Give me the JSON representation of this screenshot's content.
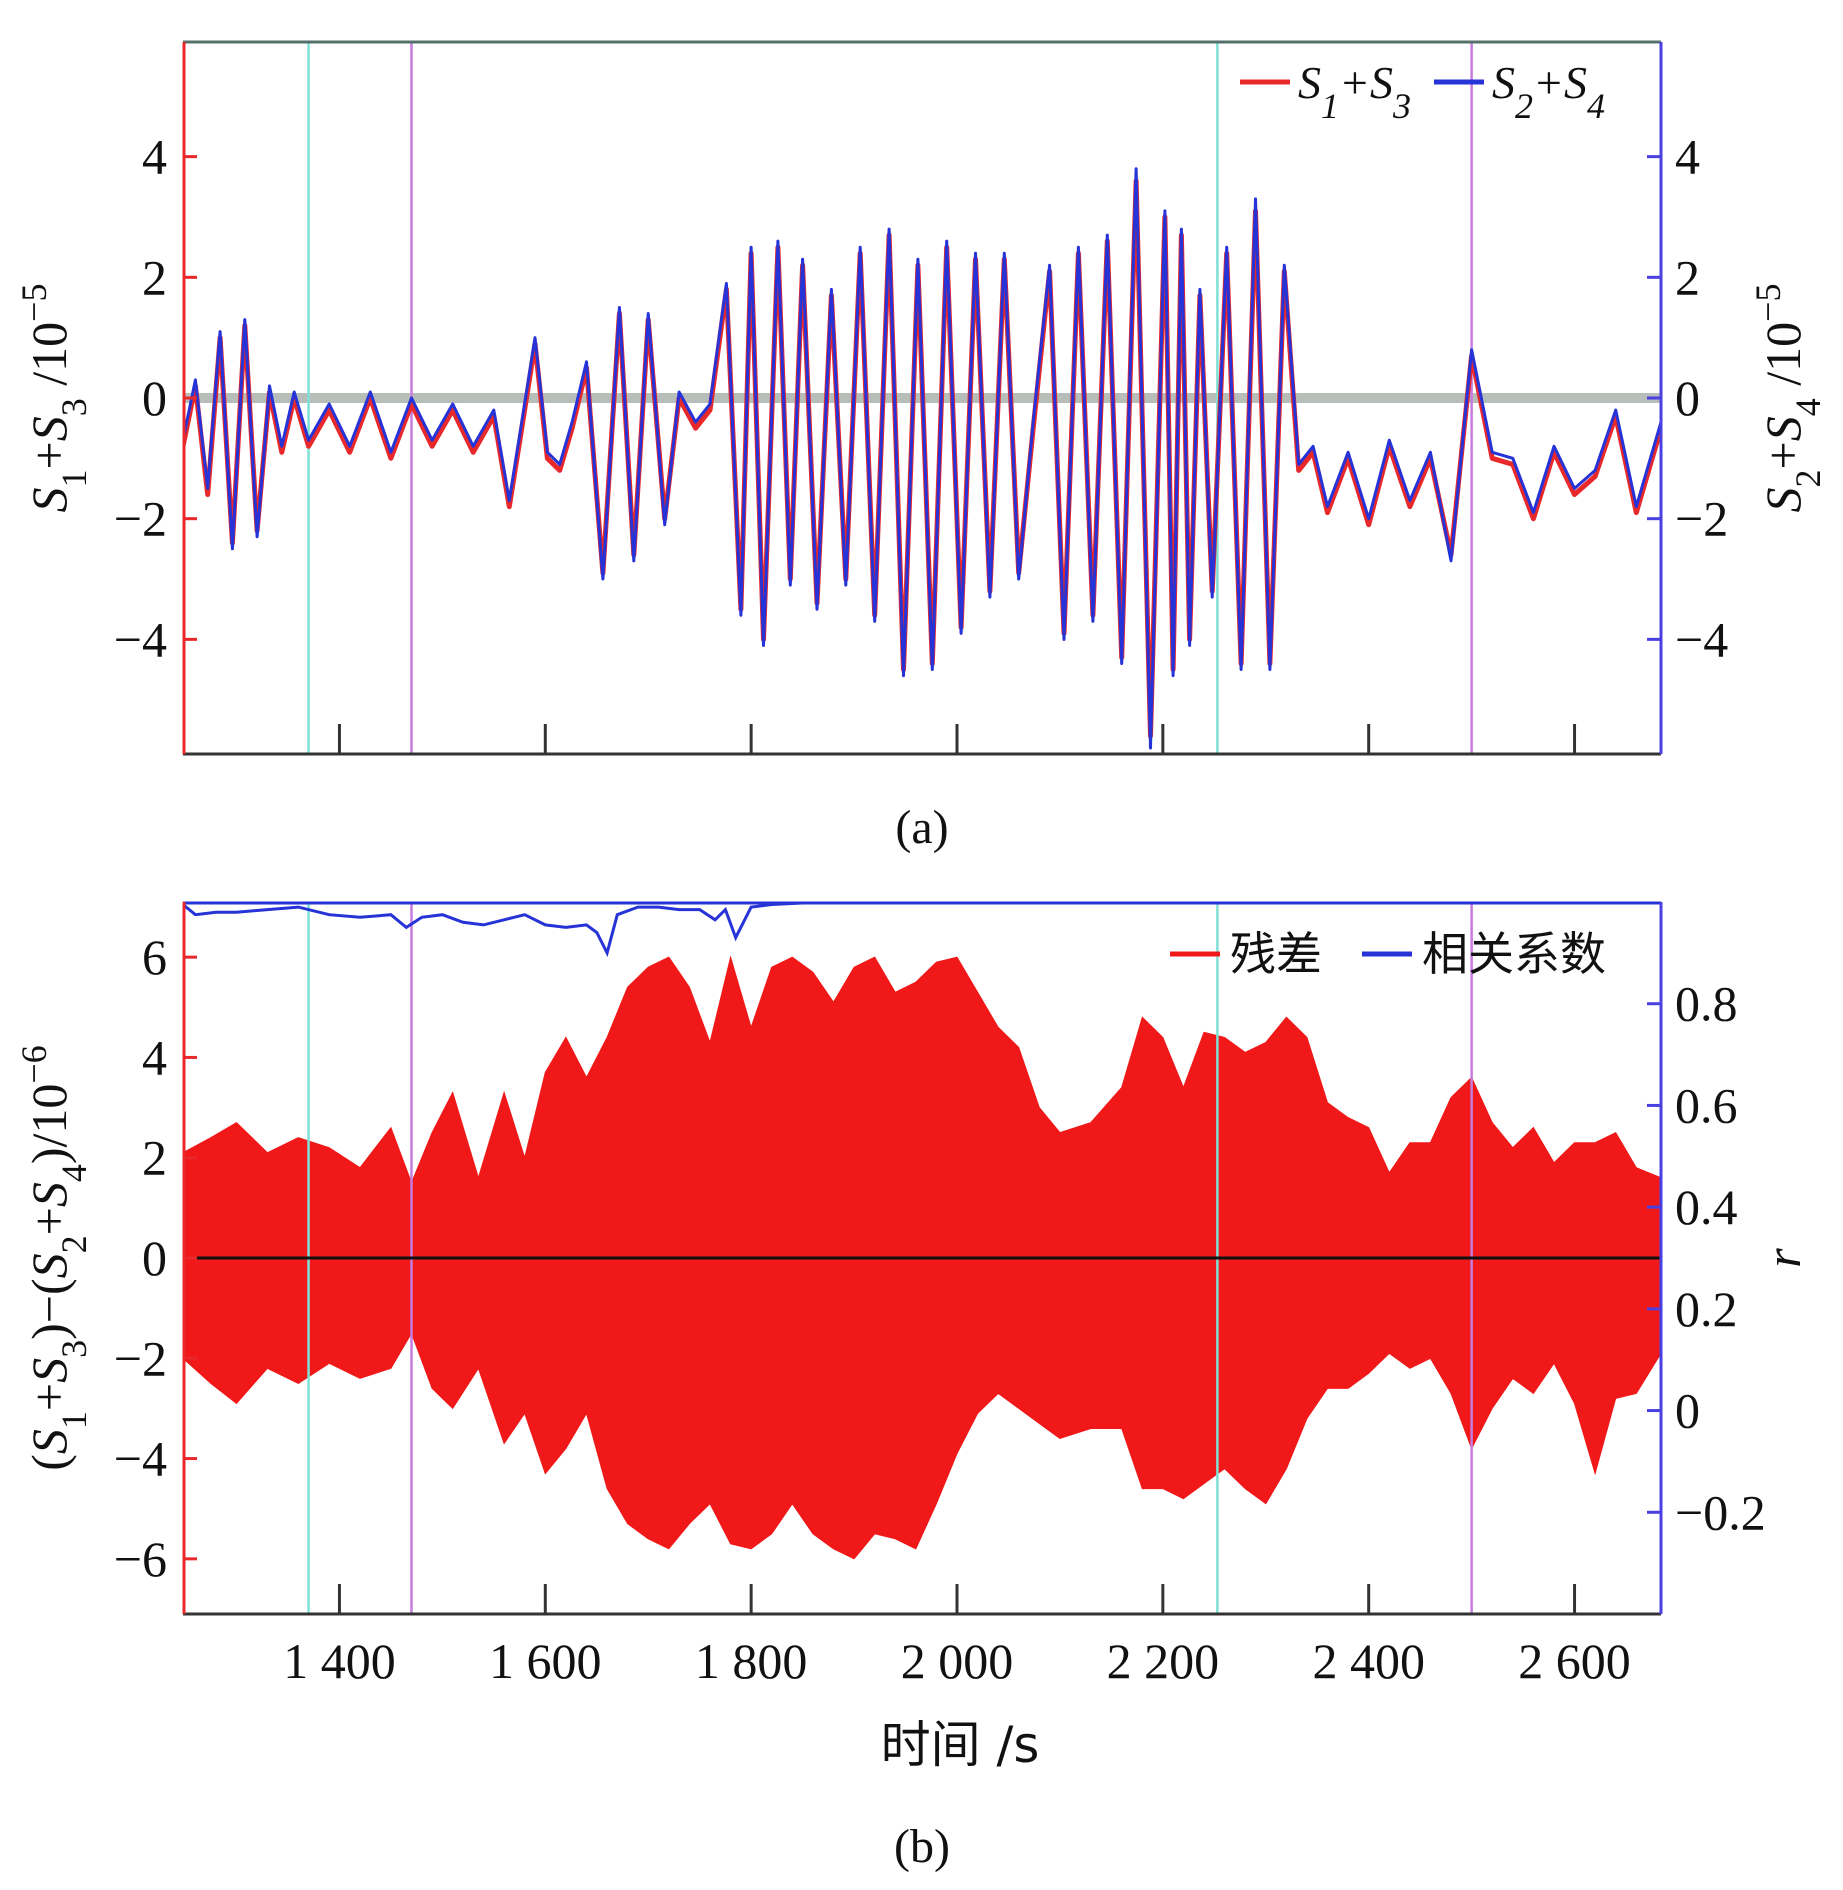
{
  "figure": {
    "x_axis_label": "时间 /s",
    "x_ticks": [
      1400,
      1600,
      1800,
      2000,
      2200,
      2400,
      2600
    ],
    "x_tick_labels": [
      "1 400",
      "1 600",
      "1 800",
      "2 000",
      "2 200",
      "2 400",
      "2 600"
    ],
    "xlim": [
      1248,
      2684
    ],
    "marker_lines": [
      {
        "x": 1370,
        "color": "#7fe0d6"
      },
      {
        "x": 1470,
        "color": "#c77be0"
      },
      {
        "x": 2253,
        "color": "#7fe0d6"
      },
      {
        "x": 2500,
        "color": "#c77be0"
      }
    ]
  },
  "chart_data": [
    {
      "type": "line",
      "panel_label": "(a)",
      "title": "",
      "ylabel_left": "S1+S3 /10−5",
      "ylabel_right": "S2+S4 /10−5",
      "ylim_left": [
        -5.9,
        5.9
      ],
      "ylim_right": [
        -5.9,
        5.9
      ],
      "y_ticks_left": [
        -4,
        -2,
        0,
        2,
        4
      ],
      "y_tick_labels_left": [
        "−4",
        "−2",
        "0",
        "2",
        "4"
      ],
      "y_ticks_right": [
        -4,
        -2,
        0,
        2,
        4
      ],
      "y_tick_labels_right": [
        "−4",
        "−2",
        "0",
        "2",
        "4"
      ],
      "legend": [
        "S1+S3",
        "S2+S4"
      ],
      "legend_position": "top-right",
      "series": [
        {
          "name": "S1+S3",
          "color": "#e8282a",
          "x": [
            1248,
            1260,
            1272,
            1284,
            1296,
            1308,
            1320,
            1332,
            1344,
            1356,
            1370,
            1390,
            1410,
            1430,
            1450,
            1470,
            1490,
            1510,
            1530,
            1550,
            1565,
            1578,
            1590,
            1602,
            1614,
            1626,
            1640,
            1656,
            1672,
            1686,
            1700,
            1716,
            1730,
            1746,
            1760,
            1776,
            1790,
            1800,
            1812,
            1826,
            1838,
            1850,
            1864,
            1878,
            1892,
            1906,
            1920,
            1934,
            1948,
            1962,
            1976,
            1990,
            2004,
            2018,
            2032,
            2046,
            2060,
            2074,
            2090,
            2104,
            2118,
            2132,
            2146,
            2160,
            2174,
            2188,
            2202,
            2210,
            2218,
            2226,
            2236,
            2248,
            2262,
            2276,
            2290,
            2304,
            2318,
            2332,
            2346,
            2360,
            2380,
            2400,
            2420,
            2440,
            2460,
            2480,
            2500,
            2520,
            2540,
            2560,
            2580,
            2600,
            2620,
            2640,
            2660,
            2684
          ],
          "y": [
            -0.8,
            0.2,
            -1.6,
            1.0,
            -2.4,
            1.2,
            -2.2,
            0.1,
            -0.9,
            0.0,
            -0.8,
            -0.2,
            -0.9,
            0.0,
            -1.0,
            -0.1,
            -0.8,
            -0.2,
            -0.9,
            -0.3,
            -1.8,
            -0.4,
            0.9,
            -1.0,
            -1.2,
            -0.5,
            0.5,
            -2.9,
            1.4,
            -2.6,
            1.3,
            -2.0,
            0.0,
            -0.5,
            -0.2,
            1.8,
            -3.5,
            2.4,
            -4.0,
            2.5,
            -3.0,
            2.2,
            -3.4,
            1.7,
            -3.0,
            2.4,
            -3.6,
            2.7,
            -4.5,
            2.2,
            -4.4,
            2.5,
            -3.8,
            2.3,
            -3.2,
            2.3,
            -2.9,
            -0.5,
            2.1,
            -3.9,
            2.4,
            -3.6,
            2.6,
            -4.3,
            3.6,
            -5.6,
            3.0,
            -4.5,
            2.7,
            -4.0,
            1.7,
            -3.2,
            2.4,
            -4.4,
            3.1,
            -4.4,
            2.1,
            -1.2,
            -0.9,
            -1.9,
            -1.0,
            -2.1,
            -0.8,
            -1.8,
            -1.0,
            -2.6,
            0.7,
            -1.0,
            -1.1,
            -2.0,
            -0.9,
            -1.6,
            -1.3,
            -0.3,
            -1.9,
            -0.5
          ]
        },
        {
          "name": "S2+S4",
          "color": "#2633d6",
          "x": [
            1248,
            1260,
            1272,
            1284,
            1296,
            1308,
            1320,
            1332,
            1344,
            1356,
            1370,
            1390,
            1410,
            1430,
            1450,
            1470,
            1490,
            1510,
            1530,
            1550,
            1565,
            1578,
            1590,
            1602,
            1614,
            1626,
            1640,
            1656,
            1672,
            1686,
            1700,
            1716,
            1730,
            1746,
            1760,
            1776,
            1790,
            1800,
            1812,
            1826,
            1838,
            1850,
            1864,
            1878,
            1892,
            1906,
            1920,
            1934,
            1948,
            1962,
            1976,
            1990,
            2004,
            2018,
            2032,
            2046,
            2060,
            2074,
            2090,
            2104,
            2118,
            2132,
            2146,
            2160,
            2174,
            2188,
            2202,
            2210,
            2218,
            2226,
            2236,
            2248,
            2262,
            2276,
            2290,
            2304,
            2318,
            2332,
            2346,
            2360,
            2380,
            2400,
            2420,
            2440,
            2460,
            2480,
            2500,
            2520,
            2540,
            2560,
            2580,
            2600,
            2620,
            2640,
            2660,
            2684
          ],
          "y": [
            -0.7,
            0.3,
            -1.5,
            1.1,
            -2.5,
            1.3,
            -2.3,
            0.2,
            -0.8,
            0.1,
            -0.7,
            -0.1,
            -0.8,
            0.1,
            -0.9,
            0.0,
            -0.7,
            -0.1,
            -0.8,
            -0.2,
            -1.7,
            -0.3,
            1.0,
            -0.9,
            -1.1,
            -0.4,
            0.6,
            -3.0,
            1.5,
            -2.7,
            1.4,
            -2.1,
            0.1,
            -0.4,
            -0.1,
            1.9,
            -3.6,
            2.5,
            -4.1,
            2.6,
            -3.1,
            2.3,
            -3.5,
            1.8,
            -3.1,
            2.5,
            -3.7,
            2.8,
            -4.6,
            2.3,
            -4.5,
            2.6,
            -3.9,
            2.4,
            -3.3,
            2.4,
            -3.0,
            -0.4,
            2.2,
            -4.0,
            2.5,
            -3.7,
            2.7,
            -4.4,
            3.8,
            -5.8,
            3.1,
            -4.6,
            2.8,
            -4.1,
            1.8,
            -3.3,
            2.5,
            -4.5,
            3.3,
            -4.5,
            2.2,
            -1.1,
            -0.8,
            -1.8,
            -0.9,
            -2.0,
            -0.7,
            -1.7,
            -0.9,
            -2.7,
            0.8,
            -0.9,
            -1.0,
            -1.9,
            -0.8,
            -1.5,
            -1.2,
            -0.2,
            -1.8,
            -0.4
          ]
        }
      ]
    },
    {
      "type": "line",
      "panel_label": "(b)",
      "title": "",
      "ylabel_left": "(S1+S3)−(S2+S4)/10−6",
      "ylabel_right": "r",
      "ylim_left": [
        -7.1,
        7.1
      ],
      "ylim_right": [
        -0.4,
        1.0
      ],
      "y_ticks_left": [
        -6,
        -4,
        -2,
        0,
        2,
        4,
        6
      ],
      "y_tick_labels_left": [
        "−6",
        "−4",
        "−2",
        "0",
        "2",
        "4",
        "6"
      ],
      "y_ticks_right": [
        -0.2,
        0,
        0.2,
        0.4,
        0.6,
        0.8
      ],
      "y_tick_labels_right": [
        "−0.2",
        "0",
        "0.2",
        "0.4",
        "0.6",
        "0.8"
      ],
      "legend": [
        "残差",
        "相关系数"
      ],
      "legend_position": "top-right",
      "residual_envelope": {
        "name": "残差",
        "color": "#f01818",
        "x": [
          1248,
          1275,
          1300,
          1330,
          1360,
          1390,
          1420,
          1450,
          1470,
          1490,
          1510,
          1535,
          1560,
          1580,
          1600,
          1620,
          1640,
          1660,
          1680,
          1700,
          1720,
          1740,
          1760,
          1780,
          1800,
          1820,
          1840,
          1860,
          1880,
          1900,
          1920,
          1940,
          1960,
          1980,
          2000,
          2020,
          2040,
          2060,
          2080,
          2100,
          2130,
          2160,
          2180,
          2200,
          2220,
          2240,
          2260,
          2280,
          2300,
          2320,
          2340,
          2360,
          2380,
          2400,
          2420,
          2440,
          2460,
          2480,
          2500,
          2520,
          2540,
          2560,
          2580,
          2600,
          2620,
          2640,
          2660,
          2684
        ],
        "upper": [
          2.1,
          2.4,
          2.7,
          2.1,
          2.4,
          2.2,
          1.8,
          2.6,
          1.5,
          2.5,
          3.3,
          1.6,
          3.3,
          2.0,
          3.7,
          4.4,
          3.6,
          4.4,
          5.4,
          5.8,
          6.0,
          5.4,
          4.3,
          6.0,
          4.6,
          5.8,
          6.0,
          5.7,
          5.1,
          5.8,
          6.0,
          5.3,
          5.5,
          5.9,
          6.0,
          5.3,
          4.6,
          4.2,
          3.0,
          2.5,
          2.7,
          3.4,
          4.8,
          4.4,
          3.4,
          4.5,
          4.4,
          4.1,
          4.3,
          4.8,
          4.4,
          3.1,
          2.8,
          2.6,
          1.7,
          2.3,
          2.3,
          3.2,
          3.6,
          2.7,
          2.2,
          2.6,
          1.9,
          2.3,
          2.3,
          2.5,
          1.8,
          1.6
        ],
        "lower": [
          -2.0,
          -2.5,
          -2.9,
          -2.2,
          -2.5,
          -2.1,
          -2.4,
          -2.2,
          -1.5,
          -2.6,
          -3.0,
          -2.2,
          -3.7,
          -3.1,
          -4.3,
          -3.8,
          -3.1,
          -4.6,
          -5.3,
          -5.6,
          -5.8,
          -5.3,
          -4.9,
          -5.7,
          -5.8,
          -5.5,
          -4.9,
          -5.5,
          -5.8,
          -6.0,
          -5.5,
          -5.6,
          -5.8,
          -4.9,
          -3.9,
          -3.1,
          -2.7,
          -3.0,
          -3.3,
          -3.6,
          -3.4,
          -3.4,
          -4.6,
          -4.6,
          -4.8,
          -4.5,
          -4.2,
          -4.6,
          -4.9,
          -4.2,
          -3.2,
          -2.6,
          -2.6,
          -2.3,
          -1.9,
          -2.2,
          -2.0,
          -2.7,
          -3.8,
          -3.0,
          -2.4,
          -2.7,
          -2.1,
          -2.9,
          -4.3,
          -2.8,
          -2.7,
          -1.9
        ]
      },
      "correlation": {
        "name": "相关系数",
        "color": "#2633d6",
        "x": [
          1248,
          1260,
          1280,
          1300,
          1330,
          1360,
          1390,
          1420,
          1450,
          1465,
          1480,
          1500,
          1520,
          1540,
          1560,
          1580,
          1600,
          1620,
          1640,
          1650,
          1660,
          1670,
          1690,
          1710,
          1730,
          1750,
          1765,
          1775,
          1785,
          1800,
          1820,
          1850,
          1900,
          2000,
          2100,
          2200,
          2300,
          2400,
          2500,
          2600,
          2684
        ],
        "y": [
          0.995,
          0.975,
          0.98,
          0.98,
          0.985,
          0.99,
          0.975,
          0.97,
          0.975,
          0.95,
          0.97,
          0.975,
          0.96,
          0.955,
          0.965,
          0.975,
          0.955,
          0.95,
          0.955,
          0.94,
          0.9,
          0.975,
          0.99,
          0.99,
          0.985,
          0.985,
          0.965,
          0.985,
          0.93,
          0.99,
          0.995,
          0.998,
          0.998,
          0.998,
          0.998,
          0.998,
          0.998,
          0.998,
          0.998,
          0.998,
          0.998
        ]
      }
    }
  ]
}
